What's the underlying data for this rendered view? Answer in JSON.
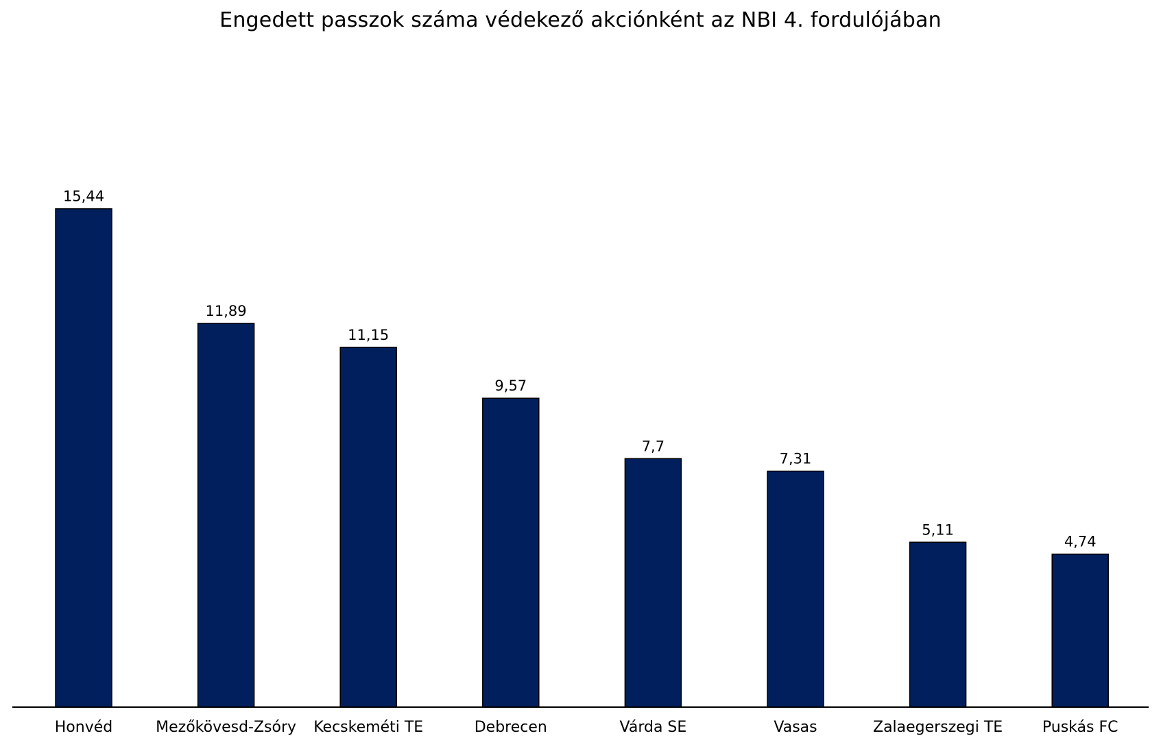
{
  "chart_data": {
    "type": "bar",
    "title": "Engedett passzok száma védekező akciónként az NBI 4. fordulójában",
    "categories": [
      "Honvéd",
      "Mezőkövesd-Zsóry",
      "Kecskeméti TE",
      "Debrecen",
      "Várda SE",
      "Vasas",
      "Zalaegerszegi TE",
      "Puskás FC"
    ],
    "values": [
      15.44,
      11.89,
      11.15,
      9.57,
      7.7,
      7.31,
      5.11,
      4.74
    ],
    "value_labels": [
      "15,44",
      "11,89",
      "11,15",
      "9,57",
      "7,7",
      "7,31",
      "5,11",
      "4,74"
    ],
    "xlabel": "",
    "ylabel": "",
    "ylim": [
      0,
      19.36
    ],
    "grid": false,
    "legend": "none",
    "bar_color": "#001f5c",
    "bar_edge_color": "#000000",
    "axis_color": "#000000"
  }
}
